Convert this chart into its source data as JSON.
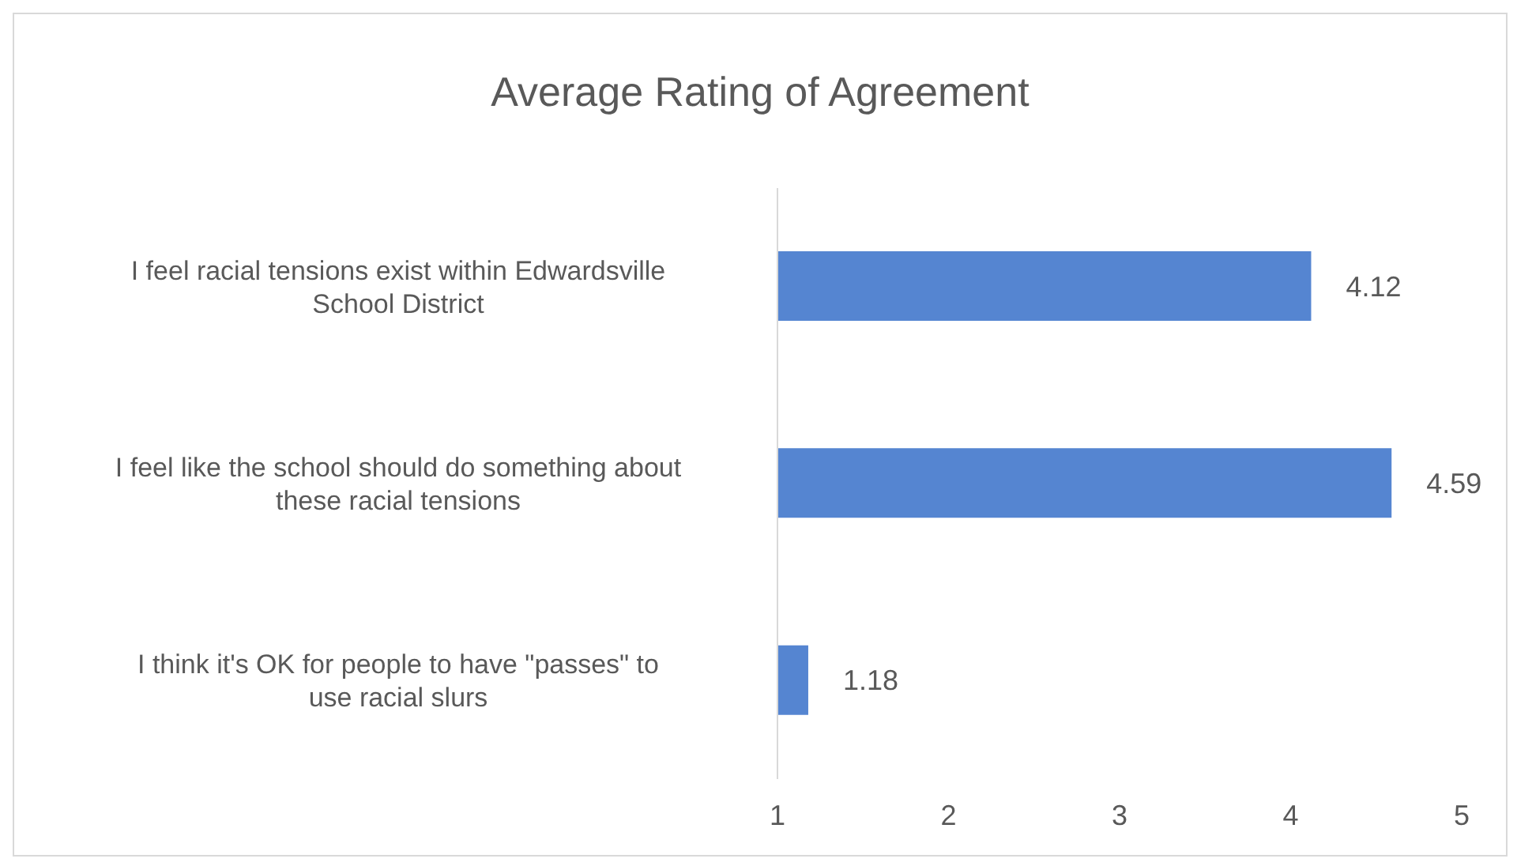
{
  "chart_data": {
    "type": "bar",
    "orientation": "horizontal",
    "title": "Average Rating of Agreement",
    "categories": [
      "I feel racial tensions exist within Edwardsville School District",
      "I feel like the school should do something about these racial tensions",
      "I think it's OK for people to have \"passes\" to use racial slurs"
    ],
    "values": [
      4.12,
      4.59,
      1.18
    ],
    "color": "#5585d1",
    "xlim": [
      1,
      5
    ],
    "xticks": [
      1,
      2,
      3,
      4,
      5
    ],
    "data_labels": true
  }
}
